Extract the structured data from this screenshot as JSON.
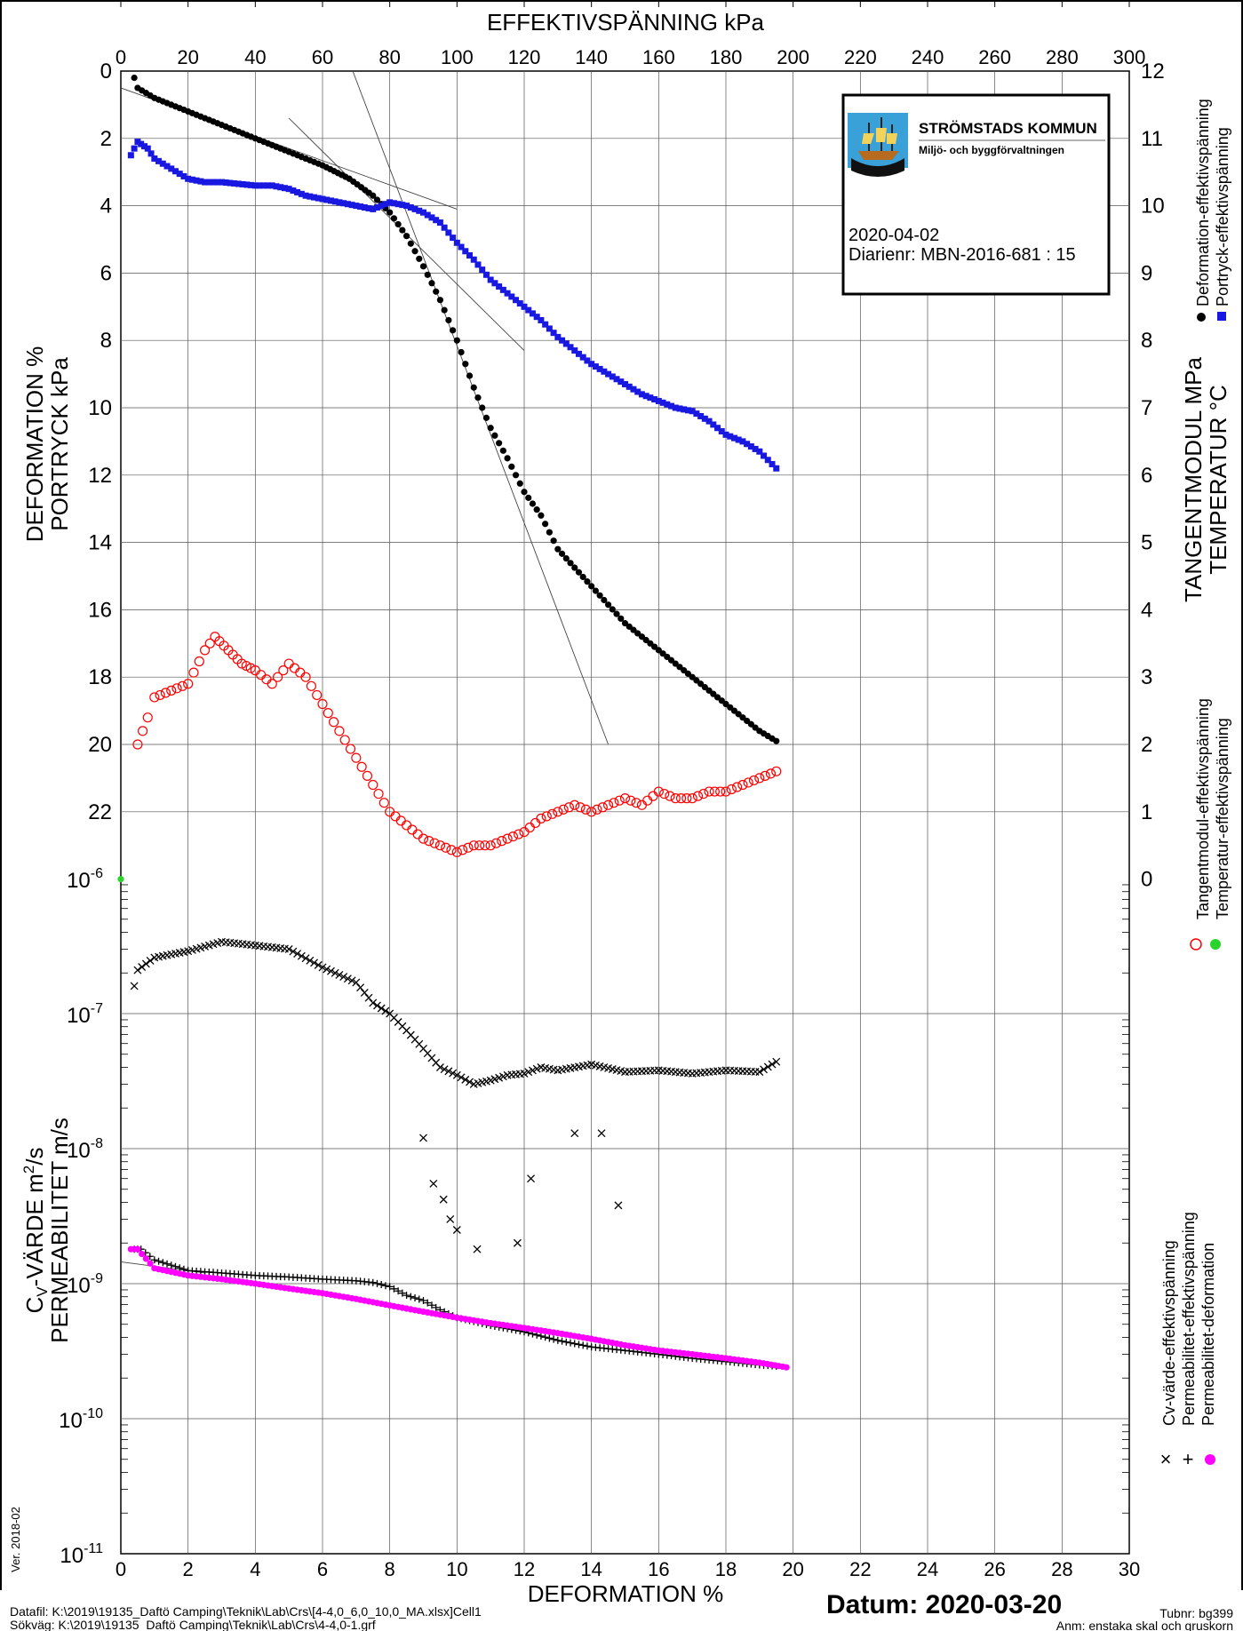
{
  "chart_data": [
    {
      "type": "scatter",
      "panel": "upper",
      "top_axis_label": "EFFEKTIVSPÄNNING  kPa",
      "top_ticks": [
        "0",
        "20",
        "40",
        "60",
        "80",
        "100",
        "120",
        "140",
        "160",
        "180",
        "200",
        "220",
        "240",
        "260",
        "280",
        "300"
      ],
      "left_axis_label_1": "DEFORMATION  %",
      "left_axis_label_2": "PORTRYCK  kPa",
      "left_ticks": [
        "0",
        "2",
        "4",
        "6",
        "8",
        "10",
        "12",
        "14",
        "16",
        "18",
        "20",
        "22"
      ],
      "right_axis_label_1": "TANGENTMODUL MPa",
      "right_axis_label_2": "TEMPERATUR °C",
      "right_ticks": [
        "12",
        "11",
        "10",
        "9",
        "8",
        "7",
        "6",
        "5",
        "4",
        "3",
        "2",
        "1",
        "0"
      ],
      "xlim": [
        0,
        300
      ],
      "ylim_left": [
        0,
        24
      ],
      "ylim_right": [
        12,
        0
      ],
      "grid": true,
      "legend_position": "right",
      "legend_group_1": [
        "Deformation-effektivspänning",
        "Portryck-effektivspänning"
      ],
      "legend_group_2": [
        "Tangentmodul-effektivspänning",
        "Temperatur-effektivspänning"
      ],
      "series": [
        {
          "name": "Deformation-effektivspänning",
          "color": "#000000",
          "marker": "dot",
          "x": [
            4,
            5,
            10,
            20,
            30,
            40,
            50,
            60,
            68,
            75,
            80,
            85,
            90,
            95,
            100,
            105,
            110,
            115,
            120,
            125,
            130,
            140,
            150,
            160,
            170,
            180,
            190,
            195
          ],
          "y": [
            0.2,
            0.5,
            0.8,
            1.2,
            1.6,
            2.0,
            2.4,
            2.8,
            3.2,
            3.7,
            4.2,
            4.9,
            5.8,
            6.8,
            8.0,
            9.4,
            10.6,
            11.5,
            12.5,
            13.2,
            14.2,
            15.3,
            16.4,
            17.2,
            18.0,
            18.8,
            19.6,
            19.9
          ]
        },
        {
          "name": "Portryck-effektivspänning",
          "color": "#1818e0",
          "marker": "square",
          "x": [
            3,
            5,
            8,
            10,
            20,
            25,
            30,
            40,
            45,
            50,
            55,
            60,
            65,
            70,
            75,
            80,
            85,
            90,
            95,
            100,
            105,
            110,
            115,
            120,
            125,
            130,
            135,
            140,
            145,
            150,
            155,
            160,
            165,
            170,
            175,
            180,
            185,
            190,
            195
          ],
          "y": [
            2.5,
            2.1,
            2.3,
            2.6,
            3.2,
            3.3,
            3.3,
            3.4,
            3.4,
            3.5,
            3.7,
            3.8,
            3.9,
            4.0,
            4.1,
            3.9,
            4.0,
            4.2,
            4.5,
            5.1,
            5.6,
            6.2,
            6.6,
            7.0,
            7.4,
            7.9,
            8.3,
            8.7,
            9.0,
            9.3,
            9.6,
            9.8,
            10.0,
            10.1,
            10.4,
            10.8,
            11.0,
            11.3,
            11.8
          ]
        },
        {
          "name": "Tangentmodul-effektivspänning",
          "color": "#ff0000",
          "marker": "circle",
          "x": [
            5,
            8,
            10,
            15,
            20,
            25,
            28,
            32,
            36,
            40,
            45,
            50,
            55,
            60,
            65,
            70,
            75,
            80,
            85,
            90,
            95,
            100,
            105,
            110,
            115,
            120,
            125,
            130,
            135,
            140,
            145,
            150,
            155,
            160,
            165,
            170,
            175,
            180,
            185,
            190,
            195
          ],
          "y_right": [
            2.0,
            2.4,
            2.7,
            2.8,
            2.9,
            3.4,
            3.6,
            3.4,
            3.2,
            3.1,
            2.9,
            3.2,
            3.0,
            2.6,
            2.2,
            1.8,
            1.4,
            1.0,
            0.8,
            0.6,
            0.5,
            0.4,
            0.5,
            0.5,
            0.6,
            0.7,
            0.9,
            1.0,
            1.1,
            1.0,
            1.1,
            1.2,
            1.1,
            1.3,
            1.2,
            1.2,
            1.3,
            1.3,
            1.4,
            1.5,
            1.6
          ]
        },
        {
          "name": "Temperatur-effektivspänning",
          "color": "#2ad42a",
          "marker": "dot",
          "x": [
            0
          ],
          "y_right": [
            0
          ]
        }
      ],
      "tangent_lines": [
        {
          "x": [
            0,
            100
          ],
          "y": [
            0.5,
            4.1
          ]
        },
        {
          "x": [
            50,
            120
          ],
          "y": [
            1.4,
            8.3
          ]
        },
        {
          "x": [
            69,
            145
          ],
          "y": [
            0.0,
            20.0
          ]
        }
      ],
      "annotation_right_markers": [
        "●",
        "■",
        "○",
        "●"
      ]
    },
    {
      "type": "scatter",
      "panel": "lower",
      "bottom_axis_label": "DEFORMATION  %",
      "bottom_ticks": [
        "0",
        "2",
        "4",
        "6",
        "8",
        "10",
        "12",
        "14",
        "16",
        "18",
        "20",
        "22",
        "24",
        "26",
        "28",
        "30"
      ],
      "left_axis_label_1": "CV-VÄRDE  m2/s",
      "left_axis_label_2": "PERMEABILITET  m/s",
      "left_tick_bases": [
        "10",
        "10",
        "10",
        "10",
        "10",
        "10"
      ],
      "left_tick_exps": [
        "-6",
        "-7",
        "-8",
        "-9",
        "-10",
        "-11"
      ],
      "xlim": [
        0,
        30
      ],
      "ylim_log": [
        -11,
        -6
      ],
      "yscale": "log",
      "grid": true,
      "legend_position": "right",
      "legend": [
        "Cv-värde-effektivspänning",
        "Permeabilitet-effektivspänning",
        "Permeabilitet-deformation"
      ],
      "series": [
        {
          "name": "Cv-värde-effektivspänning",
          "color": "#000000",
          "marker": "x",
          "x": [
            0.4,
            0.5,
            1,
            2,
            3,
            4,
            5,
            6,
            7,
            7.5,
            8,
            8.5,
            9,
            9.5,
            10,
            10.5,
            11,
            11.5,
            12,
            12.5,
            13,
            14,
            15,
            16,
            17,
            18,
            19,
            19.5
          ],
          "y": [
            1.6e-07,
            2.1e-07,
            2.6e-07,
            2.9e-07,
            3.4e-07,
            3.2e-07,
            3e-07,
            2.2e-07,
            1.7e-07,
            1.2e-07,
            1e-07,
            7.5e-08,
            5.5e-08,
            4e-08,
            3.5e-08,
            3e-08,
            3.2e-08,
            3.5e-08,
            3.6e-08,
            4e-08,
            3.8e-08,
            4.2e-08,
            3.7e-08,
            3.8e-08,
            3.6e-08,
            3.8e-08,
            3.7e-08,
            4.4e-08
          ]
        },
        {
          "name": "Cv-värde-effektivspänning (outliers)",
          "color": "#000000",
          "marker": "x",
          "x": [
            9.0,
            9.3,
            9.6,
            9.8,
            10.0,
            10.6,
            11.8,
            12.2,
            13.5,
            14.3,
            14.8
          ],
          "y": [
            1.2e-08,
            5.5e-09,
            4.2e-09,
            3e-09,
            2.5e-09,
            1.8e-09,
            2e-09,
            6e-09,
            1.3e-08,
            1.3e-08,
            3.8e-09
          ]
        },
        {
          "name": "Permeabilitet-effektivspänning",
          "color": "#000000",
          "marker": "plus",
          "x": [
            0.4,
            0.6,
            1,
            2,
            3,
            4,
            5,
            6,
            7,
            7.5,
            8,
            8.5,
            9,
            9.5,
            10,
            11,
            12,
            13,
            14,
            15,
            16,
            17,
            18,
            19,
            19.5
          ],
          "y": [
            1.8e-09,
            1.8e-09,
            1.5e-09,
            1.25e-09,
            1.2e-09,
            1.15e-09,
            1.12e-09,
            1.08e-09,
            1.05e-09,
            1.02e-09,
            9.5e-10,
            8.2e-10,
            7.5e-10,
            6.4e-10,
            5.6e-10,
            4.9e-10,
            4.4e-10,
            3.8e-10,
            3.4e-10,
            3.2e-10,
            3e-10,
            2.8e-10,
            2.65e-10,
            2.5e-10,
            2.45e-10
          ]
        },
        {
          "name": "Permeabilitet-deformation",
          "color": "#ff00ff",
          "marker": "dot",
          "x": [
            0.3,
            0.5,
            1,
            2,
            3,
            4,
            5,
            6,
            7,
            8,
            9,
            10,
            11,
            12,
            13,
            14,
            15,
            16,
            17,
            18,
            19,
            19.8
          ],
          "y": [
            1.8e-09,
            1.8e-09,
            1.3e-09,
            1.15e-09,
            1.08e-09,
            1e-09,
            9.2e-10,
            8.5e-10,
            7.7e-10,
            6.9e-10,
            6.2e-10,
            5.6e-10,
            5.1e-10,
            4.7e-10,
            4.3e-10,
            3.9e-10,
            3.5e-10,
            3.2e-10,
            3e-10,
            2.8e-10,
            2.6e-10,
            2.4e-10
          ]
        }
      ],
      "legend_markers": [
        "×",
        "+",
        "●"
      ]
    }
  ],
  "logo_box": {
    "org_name": "STRÖMSTADS KOMMUN",
    "department": "Miljö- och byggförvaltningen",
    "date": "2020-04-02",
    "diary": "Diarienr: MBN-2016-681 : 15"
  },
  "footer": {
    "version": "Ver. 2018-02",
    "datafile": "Datafil: K:\\2019\\19135_Daftö Camping\\Teknik\\Lab\\Crs\\[4-4,0_6,0_10,0_MA.xlsx]Cell1",
    "path": "Sökväg: K:\\2019\\19135_Daftö Camping\\Teknik\\Lab\\Crs\\4-4,0-1.grf",
    "datum": "Datum: 2020-03-20",
    "tubnr": "Tubnr: bg399",
    "anm": "Anm: enstaka skal och gruskorn"
  },
  "colors": {
    "deformation": "#000000",
    "portryck": "#1818e0",
    "tangentmodul": "#ff0000",
    "temperatur": "#2ad42a",
    "permeabilitet_deformation": "#ff00ff",
    "grid": "#555555"
  }
}
